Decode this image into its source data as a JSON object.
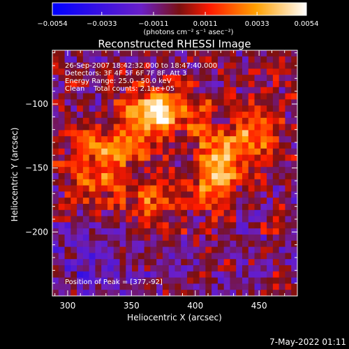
{
  "chart_data": {
    "type": "heatmap",
    "title": "Reconstructed RHESSI Image",
    "xlabel": "Heliocentric X (arcsec)",
    "ylabel": "Heliocentric Y (arcsec)",
    "xlim": [
      288,
      480
    ],
    "ylim": [
      -250,
      -58
    ],
    "x_ticks": [
      300,
      350,
      400,
      450
    ],
    "y_ticks": [
      -200,
      -150,
      -100
    ],
    "colorbar": {
      "min": -0.0054,
      "max": 0.0054,
      "ticks": [
        -0.0054,
        -0.0033,
        -0.0011,
        0.0011,
        0.0033,
        0.0054
      ],
      "tick_labels": [
        "−0.0054",
        "−0.0033",
        "−0.0011",
        "0.0011",
        "0.0033",
        "0.0054"
      ],
      "units_label": "(photons cm⁻² s⁻¹ asec⁻²)",
      "colors": [
        "#0000ff",
        "#6a1fc8",
        "#7a1010",
        "#ff1a00",
        "#ffa000",
        "#ffffff"
      ]
    },
    "annotations": [
      "26-Sep-2007 18:42:32.000 to 18:47:40.000",
      "Detectors: 3F 4F 5F 6F 7F 8F, Att 3",
      "Energy Range: 25.0 - 50.0 keV",
      "Clean    Total counts: 2.11e+05"
    ],
    "peak_label": "Position of Peak = [377,-92]",
    "peak_position": [
      377,
      -92
    ]
  },
  "footer_date": "7-May-2022 01:11"
}
